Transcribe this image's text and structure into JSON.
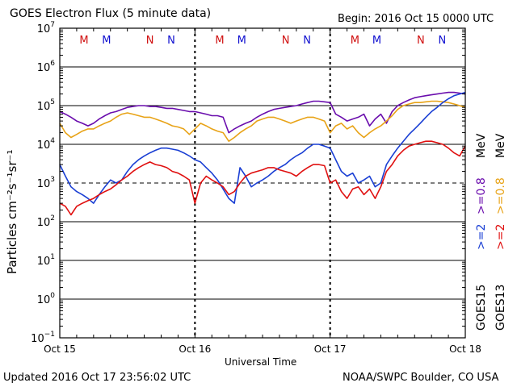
{
  "header": {
    "title": "GOES Electron Flux (5 minute data)",
    "begin": "Begin: 2016 Oct 15 0000 UTC"
  },
  "footer": {
    "updated": "Updated 2016 Oct 17 23:56:02 UTC",
    "credit": "NOAA/SWPC Boulder, CO USA"
  },
  "chart_data": {
    "type": "line",
    "title": "GOES Electron Flux (5 minute data)",
    "xlabel": "Universal Time",
    "ylabel": "Particles cm⁻²s⁻¹sr⁻¹",
    "yscale": "log",
    "ylim": [
      0.1,
      10000000
    ],
    "xlim": [
      0,
      72
    ],
    "x_unit": "hours since 2016 Oct 15 0000 UTC",
    "x_ticks": [
      {
        "x": 0,
        "label": "Oct 15"
      },
      {
        "x": 24,
        "label": "Oct 16"
      },
      {
        "x": 48,
        "label": "Oct 17"
      },
      {
        "x": 72,
        "label": "Oct 18"
      }
    ],
    "y_ticks": [
      {
        "exp": "7",
        "value": 10000000
      },
      {
        "exp": "6",
        "value": 1000000
      },
      {
        "exp": "5",
        "value": 100000
      },
      {
        "exp": "4",
        "value": 10000
      },
      {
        "exp": "3",
        "value": 1000
      },
      {
        "exp": "2",
        "value": 100
      },
      {
        "exp": "1",
        "value": 10
      },
      {
        "exp": "0",
        "value": 1
      },
      {
        "exp": "−1",
        "value": 0.1
      }
    ],
    "threshold": {
      "value": 1000,
      "style": "dashed"
    },
    "markers": [
      {
        "x": 4.3,
        "label": "M",
        "color": "#d01010"
      },
      {
        "x": 8.3,
        "label": "M",
        "color": "#1010d0"
      },
      {
        "x": 16.0,
        "label": "N",
        "color": "#d01010"
      },
      {
        "x": 19.8,
        "label": "N",
        "color": "#1010d0"
      },
      {
        "x": 28.4,
        "label": "M",
        "color": "#d01010"
      },
      {
        "x": 32.3,
        "label": "M",
        "color": "#1010d0"
      },
      {
        "x": 40.1,
        "label": "N",
        "color": "#d01010"
      },
      {
        "x": 43.9,
        "label": "N",
        "color": "#1010d0"
      },
      {
        "x": 52.4,
        "label": "M",
        "color": "#d01010"
      },
      {
        "x": 56.3,
        "label": "M",
        "color": "#1010d0"
      },
      {
        "x": 64.1,
        "label": "N",
        "color": "#d01010"
      },
      {
        "x": 67.9,
        "label": "N",
        "color": "#1010d0"
      }
    ],
    "series": [
      {
        "name": "GOES15 >=0.8 MeV",
        "color": "#6a0dad",
        "x": [
          0,
          1,
          2,
          3,
          4,
          5,
          6,
          7,
          8,
          9,
          10,
          11,
          12,
          13,
          14,
          15,
          16,
          17,
          18,
          19,
          20,
          21,
          22,
          23,
          24,
          25,
          26,
          27,
          28,
          29,
          30,
          31,
          32,
          33,
          34,
          35,
          36,
          37,
          38,
          39,
          40,
          41,
          42,
          43,
          44,
          45,
          46,
          47,
          48,
          49,
          50,
          51,
          52,
          53,
          54,
          55,
          56,
          57,
          58,
          59,
          60,
          61,
          62,
          63,
          64,
          65,
          66,
          67,
          68,
          69,
          70,
          71,
          72
        ],
        "values": [
          70000,
          60000,
          50000,
          40000,
          35000,
          30000,
          35000,
          45000,
          55000,
          65000,
          70000,
          80000,
          90000,
          95000,
          100000,
          100000,
          95000,
          95000,
          90000,
          85000,
          85000,
          80000,
          75000,
          70000,
          70000,
          65000,
          60000,
          55000,
          55000,
          50000,
          20000,
          25000,
          30000,
          35000,
          40000,
          50000,
          60000,
          70000,
          80000,
          85000,
          90000,
          95000,
          100000,
          110000,
          120000,
          130000,
          130000,
          125000,
          120000,
          60000,
          50000,
          40000,
          45000,
          50000,
          60000,
          30000,
          45000,
          60000,
          35000,
          70000,
          100000,
          120000,
          140000,
          160000,
          170000,
          180000,
          190000,
          200000,
          210000,
          220000,
          220000,
          210000,
          200000
        ]
      },
      {
        "name": "GOES13 >=0.8 MeV",
        "color": "#e8a317",
        "x": [
          0,
          1,
          2,
          3,
          4,
          5,
          6,
          7,
          8,
          9,
          10,
          11,
          12,
          13,
          14,
          15,
          16,
          17,
          18,
          19,
          20,
          21,
          22,
          23,
          24,
          25,
          26,
          27,
          28,
          29,
          30,
          31,
          32,
          33,
          34,
          35,
          36,
          37,
          38,
          39,
          40,
          41,
          42,
          43,
          44,
          45,
          46,
          47,
          48,
          49,
          50,
          51,
          52,
          53,
          54,
          55,
          56,
          57,
          58,
          59,
          60,
          61,
          62,
          63,
          64,
          65,
          66,
          67,
          68,
          69,
          70,
          71,
          72
        ],
        "values": [
          35000,
          20000,
          15000,
          18000,
          22000,
          25000,
          25000,
          30000,
          35000,
          40000,
          50000,
          60000,
          65000,
          60000,
          55000,
          50000,
          50000,
          45000,
          40000,
          35000,
          30000,
          28000,
          25000,
          18000,
          25000,
          35000,
          30000,
          25000,
          22000,
          20000,
          12000,
          15000,
          20000,
          25000,
          30000,
          40000,
          45000,
          50000,
          50000,
          45000,
          40000,
          35000,
          40000,
          45000,
          50000,
          50000,
          45000,
          40000,
          20000,
          30000,
          35000,
          25000,
          30000,
          20000,
          15000,
          20000,
          25000,
          30000,
          40000,
          55000,
          80000,
          100000,
          110000,
          120000,
          120000,
          125000,
          130000,
          130000,
          125000,
          120000,
          110000,
          100000,
          90000
        ]
      },
      {
        "name": "GOES15 >=2 MeV",
        "color": "#1a3fd4",
        "x": [
          0,
          1,
          2,
          3,
          4,
          5,
          6,
          7,
          8,
          9,
          10,
          11,
          12,
          13,
          14,
          15,
          16,
          17,
          18,
          19,
          20,
          21,
          22,
          23,
          24,
          25,
          26,
          27,
          28,
          29,
          30,
          31,
          32,
          33,
          34,
          35,
          36,
          37,
          38,
          39,
          40,
          41,
          42,
          43,
          44,
          45,
          46,
          47,
          48,
          49,
          50,
          51,
          52,
          53,
          54,
          55,
          56,
          57,
          58,
          59,
          60,
          61,
          62,
          63,
          64,
          65,
          66,
          67,
          68,
          69,
          70,
          71,
          72
        ],
        "values": [
          3000,
          1500,
          800,
          600,
          500,
          400,
          300,
          500,
          800,
          1200,
          1000,
          1200,
          2000,
          3000,
          4000,
          5000,
          6000,
          7000,
          8000,
          8000,
          7500,
          7000,
          6000,
          5000,
          4000,
          3500,
          2500,
          1800,
          1200,
          700,
          400,
          300,
          2500,
          1500,
          800,
          1000,
          1200,
          1500,
          2000,
          2500,
          3000,
          4000,
          5000,
          6000,
          8000,
          10000,
          10000,
          9000,
          8000,
          4000,
          2000,
          1500,
          1800,
          1000,
          1200,
          1500,
          800,
          1000,
          3000,
          5000,
          8000,
          12000,
          18000,
          25000,
          35000,
          50000,
          70000,
          90000,
          120000,
          150000,
          180000,
          200000,
          220000
        ]
      },
      {
        "name": "GOES13 >=2 MeV",
        "color": "#e01010",
        "x": [
          0,
          1,
          2,
          3,
          4,
          5,
          6,
          7,
          8,
          9,
          10,
          11,
          12,
          13,
          14,
          15,
          16,
          17,
          18,
          19,
          20,
          21,
          22,
          23,
          24,
          25,
          26,
          27,
          28,
          29,
          30,
          31,
          32,
          33,
          34,
          35,
          36,
          37,
          38,
          39,
          40,
          41,
          42,
          43,
          44,
          45,
          46,
          47,
          48,
          49,
          50,
          51,
          52,
          53,
          54,
          55,
          56,
          57,
          58,
          59,
          60,
          61,
          62,
          63,
          64,
          65,
          66,
          67,
          68,
          69,
          70,
          71,
          72
        ],
        "values": [
          300,
          250,
          150,
          250,
          300,
          350,
          400,
          500,
          600,
          700,
          900,
          1200,
          1500,
          2000,
          2500,
          3000,
          3500,
          3000,
          2800,
          2500,
          2000,
          1800,
          1500,
          1200,
          300,
          1000,
          1500,
          1200,
          1000,
          800,
          500,
          600,
          1000,
          1500,
          1800,
          2000,
          2200,
          2500,
          2500,
          2200,
          2000,
          1800,
          1500,
          2000,
          2500,
          3000,
          3000,
          2800,
          1000,
          1200,
          600,
          400,
          700,
          800,
          500,
          700,
          400,
          800,
          2000,
          3000,
          5000,
          7000,
          9000,
          10000,
          11000,
          12000,
          12000,
          11000,
          10000,
          8000,
          6000,
          5000,
          9000
        ]
      }
    ],
    "right_labels": {
      "goes15": "GOES15",
      "goes13": "GOES13",
      "g15_2mev": ">=2",
      "g13_2mev": ">=2",
      "g15_08mev": ">=0.8",
      "g13_08mev": ">=0.8",
      "mev_unit_1": "MeV",
      "mev_unit_2": "MeV"
    }
  }
}
